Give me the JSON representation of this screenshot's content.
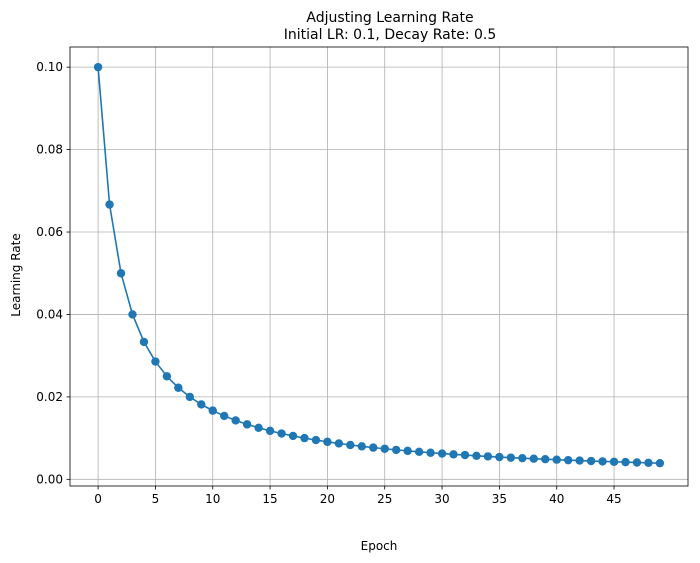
{
  "chart_data": {
    "type": "line",
    "title": "Adjusting Learning Rate",
    "subtitle": "Initial LR: 0.1, Decay Rate: 0.5",
    "xlabel": "Epoch",
    "ylabel": "Learning Rate",
    "xlim": [
      -2.45,
      51.45
    ],
    "ylim": [
      -0.00162,
      0.10489
    ],
    "xticks": [
      0,
      5,
      10,
      15,
      20,
      25,
      30,
      35,
      40,
      45
    ],
    "yticks": [
      0.0,
      0.02,
      0.04,
      0.06,
      0.08,
      0.1
    ],
    "ytick_labels": [
      "0.00",
      "0.02",
      "0.04",
      "0.06",
      "0.08",
      "0.10"
    ],
    "grid": true,
    "series": [
      {
        "color": "#1f77b4",
        "marker": "circle",
        "x": [
          0,
          1,
          2,
          3,
          4,
          5,
          6,
          7,
          8,
          9,
          10,
          11,
          12,
          13,
          14,
          15,
          16,
          17,
          18,
          19,
          20,
          21,
          22,
          23,
          24,
          25,
          26,
          27,
          28,
          29,
          30,
          31,
          32,
          33,
          34,
          35,
          36,
          37,
          38,
          39,
          40,
          41,
          42,
          43,
          44,
          45,
          46,
          47,
          48,
          49
        ],
        "values": [
          0.1,
          0.06667,
          0.05,
          0.04,
          0.03333,
          0.02857,
          0.025,
          0.02222,
          0.02,
          0.01818,
          0.01667,
          0.01538,
          0.01429,
          0.01333,
          0.0125,
          0.01176,
          0.01111,
          0.01053,
          0.01,
          0.00952,
          0.00909,
          0.0087,
          0.00833,
          0.008,
          0.00769,
          0.00741,
          0.00714,
          0.0069,
          0.00667,
          0.00645,
          0.00625,
          0.00606,
          0.00588,
          0.00571,
          0.00556,
          0.00541,
          0.00526,
          0.00513,
          0.005,
          0.00488,
          0.00476,
          0.00465,
          0.00455,
          0.00444,
          0.00435,
          0.00426,
          0.00417,
          0.00408,
          0.004,
          0.00392
        ]
      }
    ]
  }
}
